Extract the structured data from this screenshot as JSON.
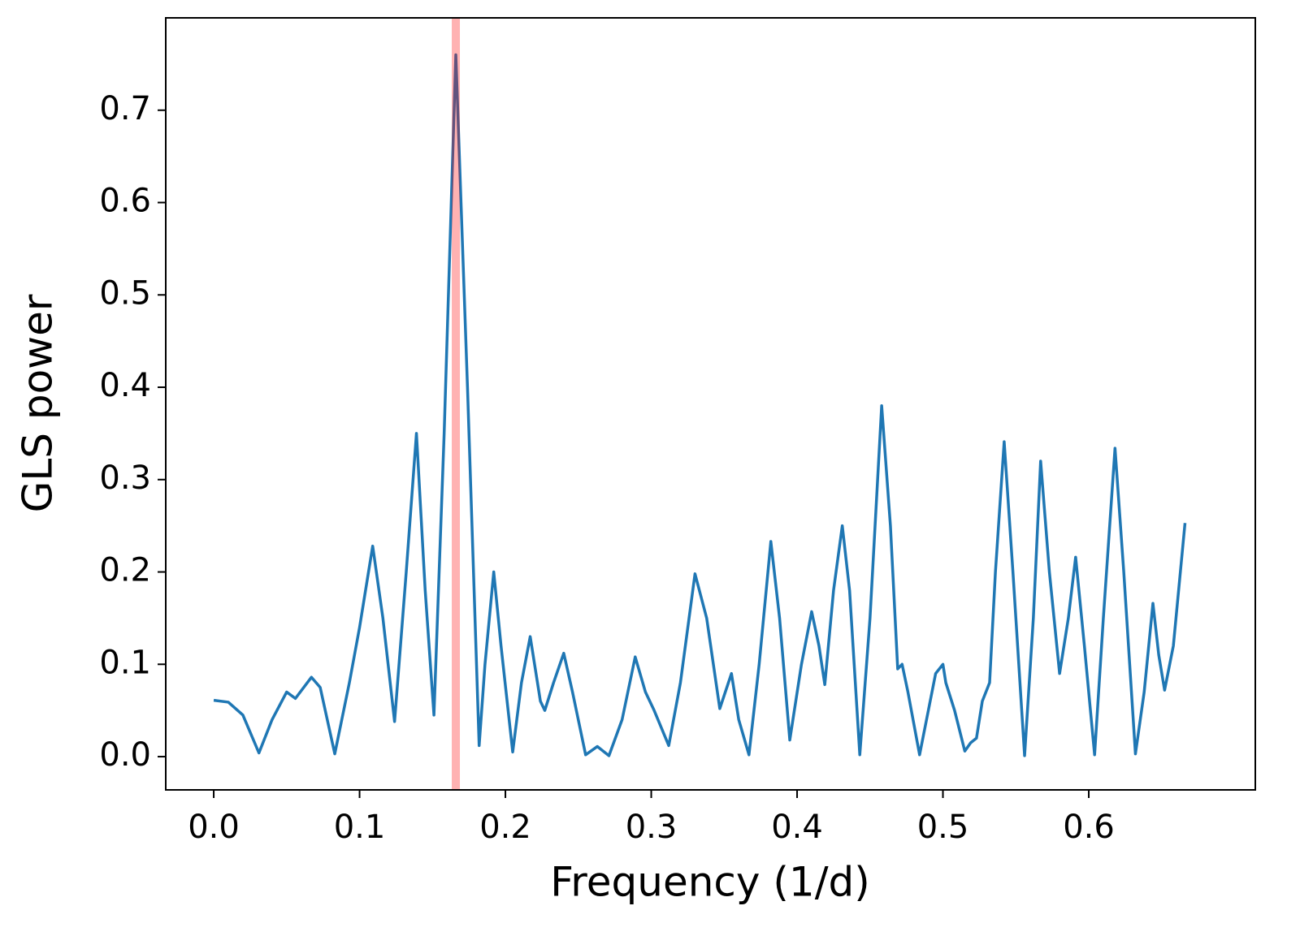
{
  "chart_data": {
    "type": "line",
    "xlabel": "Frequency (1/d)",
    "ylabel": "GLS power",
    "x": [
      0.0,
      0.01,
      0.02,
      0.031,
      0.04,
      0.05,
      0.056,
      0.067,
      0.073,
      0.083,
      0.093,
      0.1,
      0.109,
      0.116,
      0.124,
      0.132,
      0.139,
      0.145,
      0.151,
      0.158,
      0.166,
      0.174,
      0.182,
      0.186,
      0.192,
      0.197,
      0.205,
      0.211,
      0.217,
      0.224,
      0.227,
      0.233,
      0.24,
      0.246,
      0.255,
      0.263,
      0.271,
      0.28,
      0.289,
      0.296,
      0.302,
      0.312,
      0.32,
      0.33,
      0.338,
      0.347,
      0.355,
      0.36,
      0.367,
      0.374,
      0.382,
      0.388,
      0.395,
      0.403,
      0.41,
      0.415,
      0.419,
      0.425,
      0.431,
      0.436,
      0.443,
      0.45,
      0.458,
      0.464,
      0.469,
      0.472,
      0.476,
      0.484,
      0.49,
      0.495,
      0.5,
      0.502,
      0.508,
      0.515,
      0.519,
      0.523,
      0.527,
      0.532,
      0.536,
      0.542,
      0.548,
      0.556,
      0.562,
      0.567,
      0.573,
      0.58,
      0.586,
      0.591,
      0.597,
      0.604,
      0.61,
      0.618,
      0.624,
      0.632,
      0.638,
      0.644,
      0.648,
      0.652,
      0.658,
      0.666
    ],
    "series": [
      {
        "color": "#1f77b4",
        "values": [
          0.061,
          0.059,
          0.045,
          0.004,
          0.04,
          0.07,
          0.063,
          0.086,
          0.075,
          0.003,
          0.08,
          0.14,
          0.228,
          0.15,
          0.038,
          0.2,
          0.35,
          0.18,
          0.045,
          0.35,
          0.76,
          0.4,
          0.012,
          0.1,
          0.2,
          0.12,
          0.005,
          0.08,
          0.13,
          0.06,
          0.05,
          0.08,
          0.112,
          0.07,
          0.002,
          0.011,
          0.001,
          0.04,
          0.108,
          0.07,
          0.05,
          0.012,
          0.08,
          0.198,
          0.15,
          0.052,
          0.09,
          0.04,
          0.002,
          0.1,
          0.233,
          0.15,
          0.018,
          0.1,
          0.157,
          0.12,
          0.078,
          0.18,
          0.25,
          0.18,
          0.002,
          0.15,
          0.38,
          0.25,
          0.095,
          0.1,
          0.07,
          0.002,
          0.05,
          0.09,
          0.1,
          0.08,
          0.05,
          0.006,
          0.015,
          0.02,
          0.06,
          0.08,
          0.2,
          0.341,
          0.2,
          0.001,
          0.15,
          0.32,
          0.2,
          0.09,
          0.15,
          0.216,
          0.12,
          0.002,
          0.15,
          0.334,
          0.2,
          0.003,
          0.07,
          0.166,
          0.11,
          0.072,
          0.12,
          0.253
        ]
      }
    ],
    "vline": {
      "x": 0.166,
      "color": "#ff0000"
    },
    "xlim": [
      -0.0329,
      0.7142
    ],
    "ylim": [
      -0.036,
      0.8
    ],
    "xticks": [
      {
        "value": 0,
        "label": "0.0"
      },
      0.1,
      0.2,
      0.3,
      0.4,
      0.5,
      0.6
    ],
    "yticks": [
      {
        "value": 0,
        "label": "0.0"
      },
      0.1,
      0.2,
      0.3,
      0.4,
      0.5,
      0.6,
      0.7
    ]
  }
}
